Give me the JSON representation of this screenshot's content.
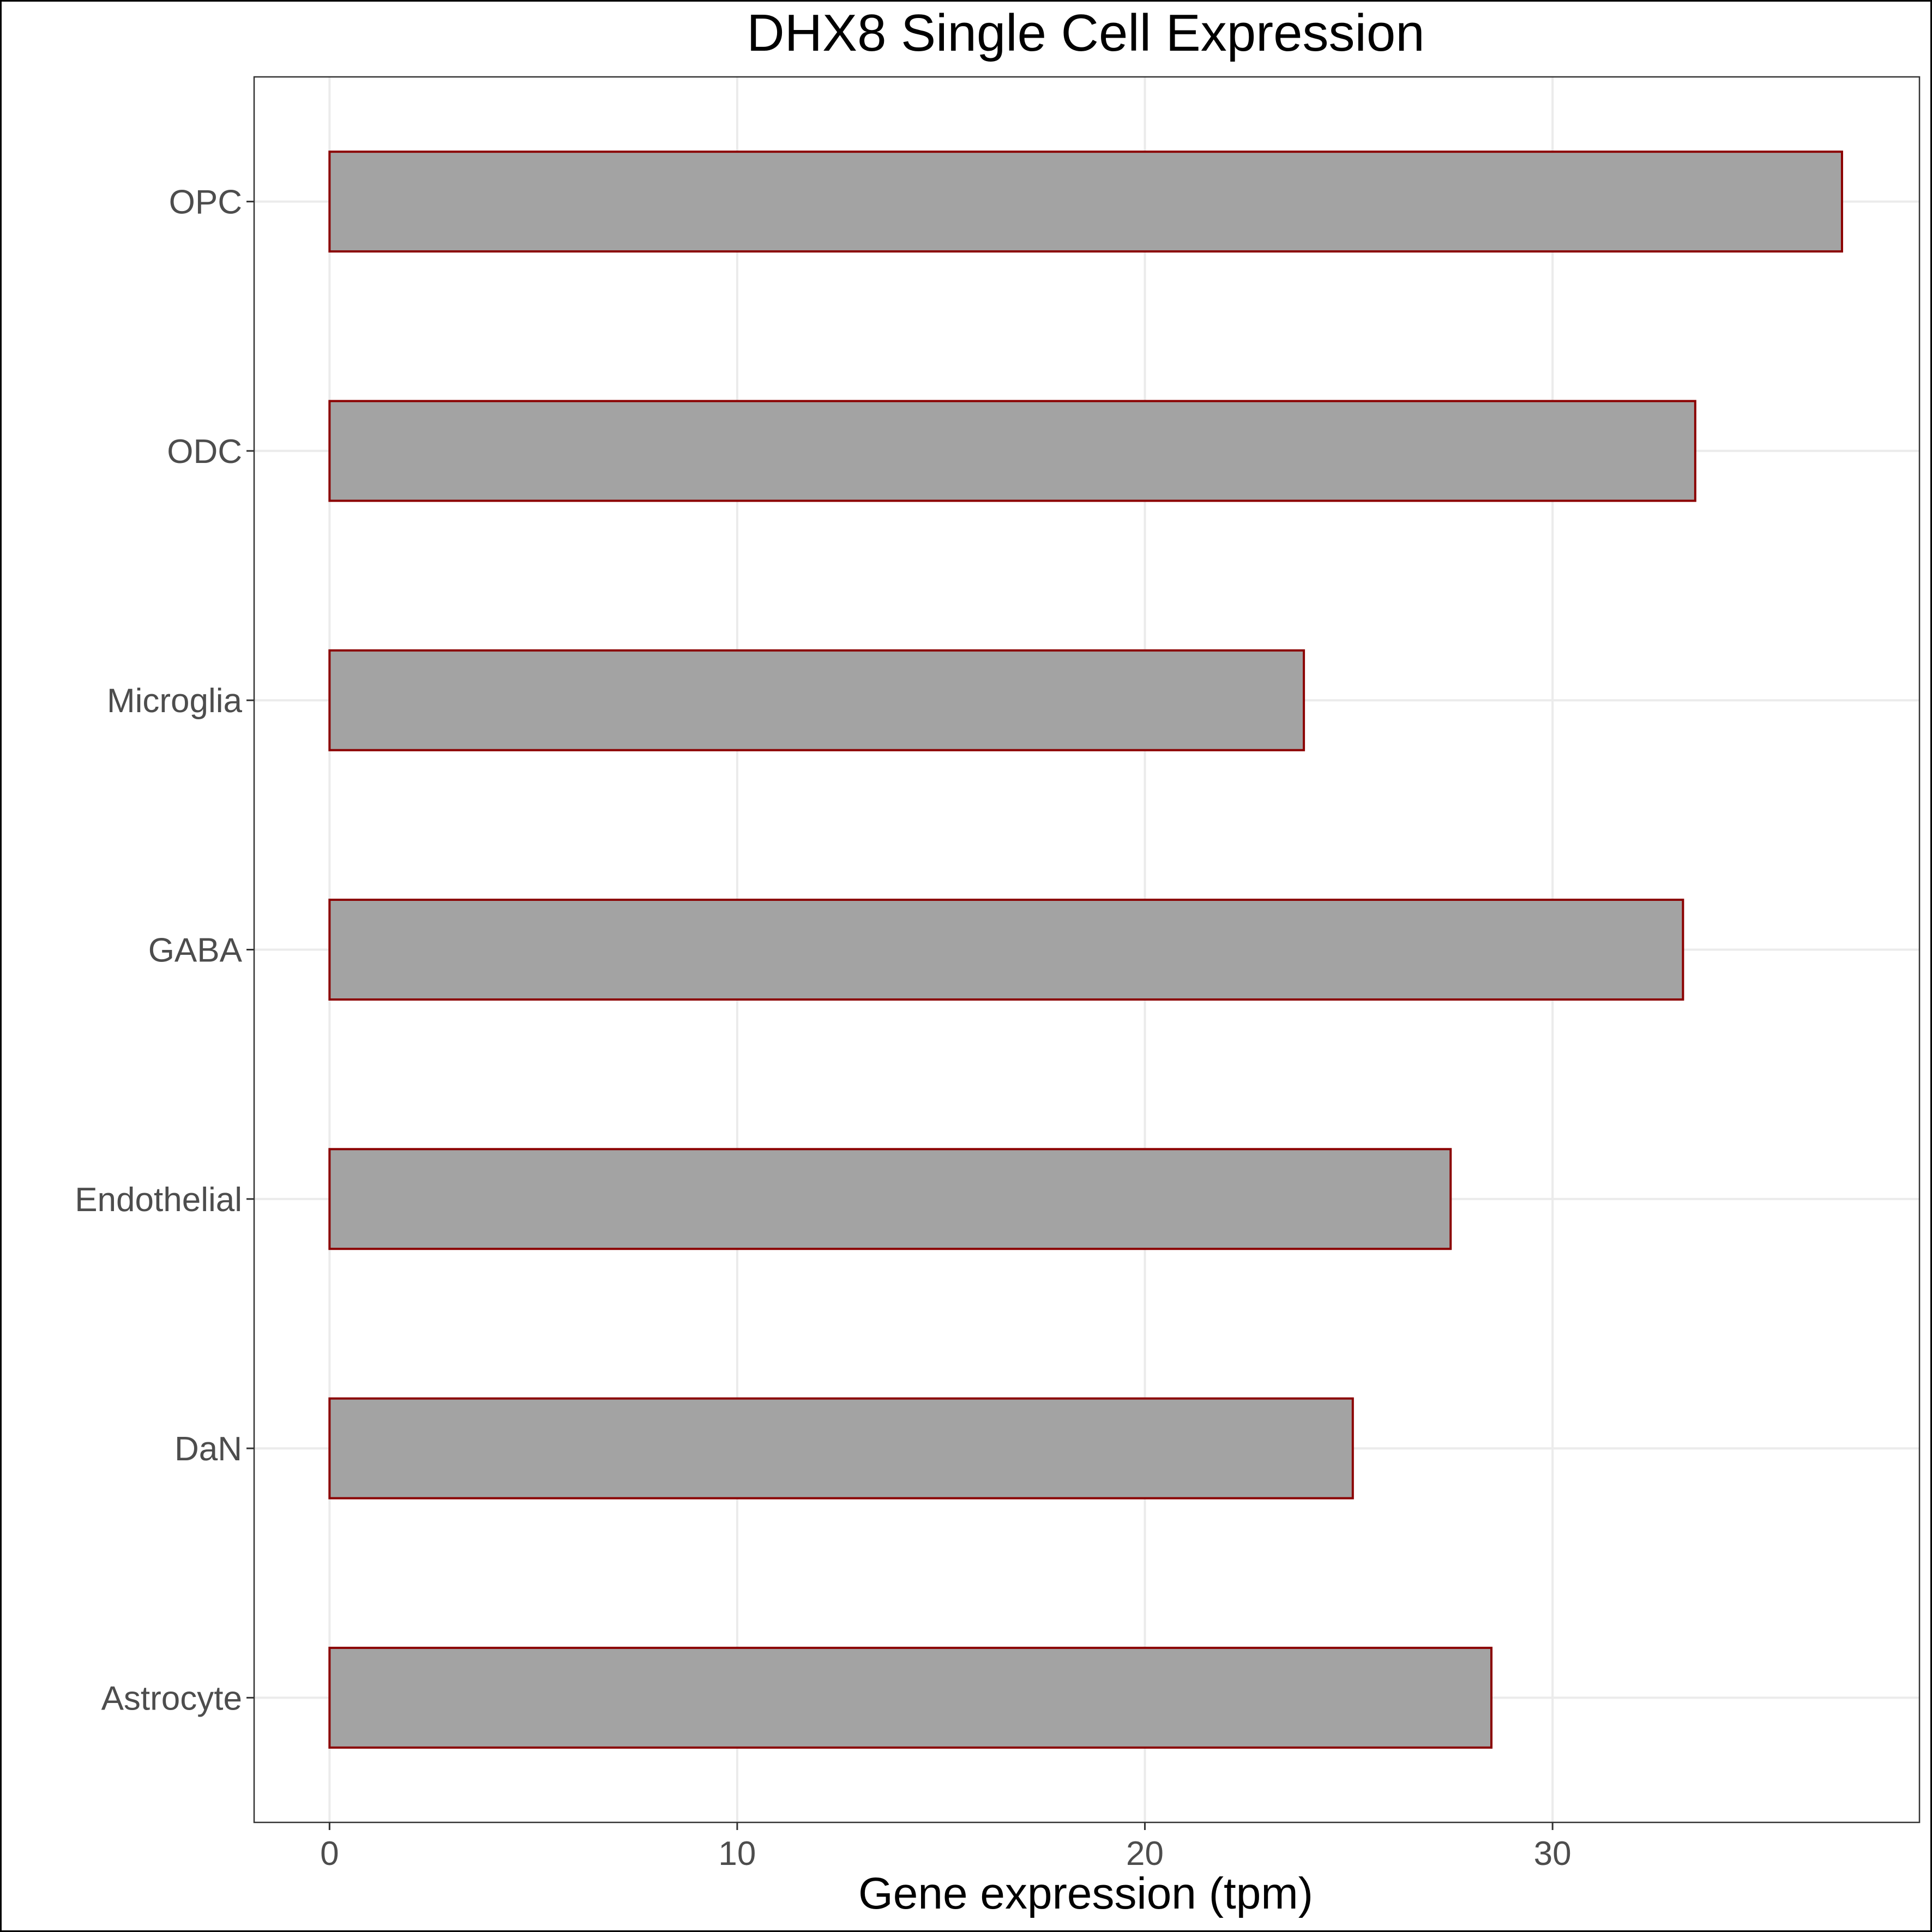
{
  "chart_data": {
    "type": "bar",
    "orientation": "horizontal",
    "title": "DHX8 Single Cell Expression",
    "xlabel": "Gene expression (tpm)",
    "ylabel": "",
    "categories": [
      "Astrocyte",
      "DaN",
      "Endothelial",
      "GABA",
      "Microglia",
      "ODC",
      "OPC"
    ],
    "values": [
      28.5,
      25.1,
      27.5,
      33.2,
      23.9,
      33.5,
      37.1
    ],
    "xlim": [
      -1.85,
      39.0
    ],
    "xticks": [
      0,
      10,
      20,
      30
    ],
    "grid": true,
    "legend": "none",
    "colors": {
      "bar_fill": "#a3a3a3",
      "bar_outline": "#8b0000",
      "grid": "#ebebeb",
      "panel_border": "#333333",
      "tick_text": "#4d4d4d"
    }
  }
}
